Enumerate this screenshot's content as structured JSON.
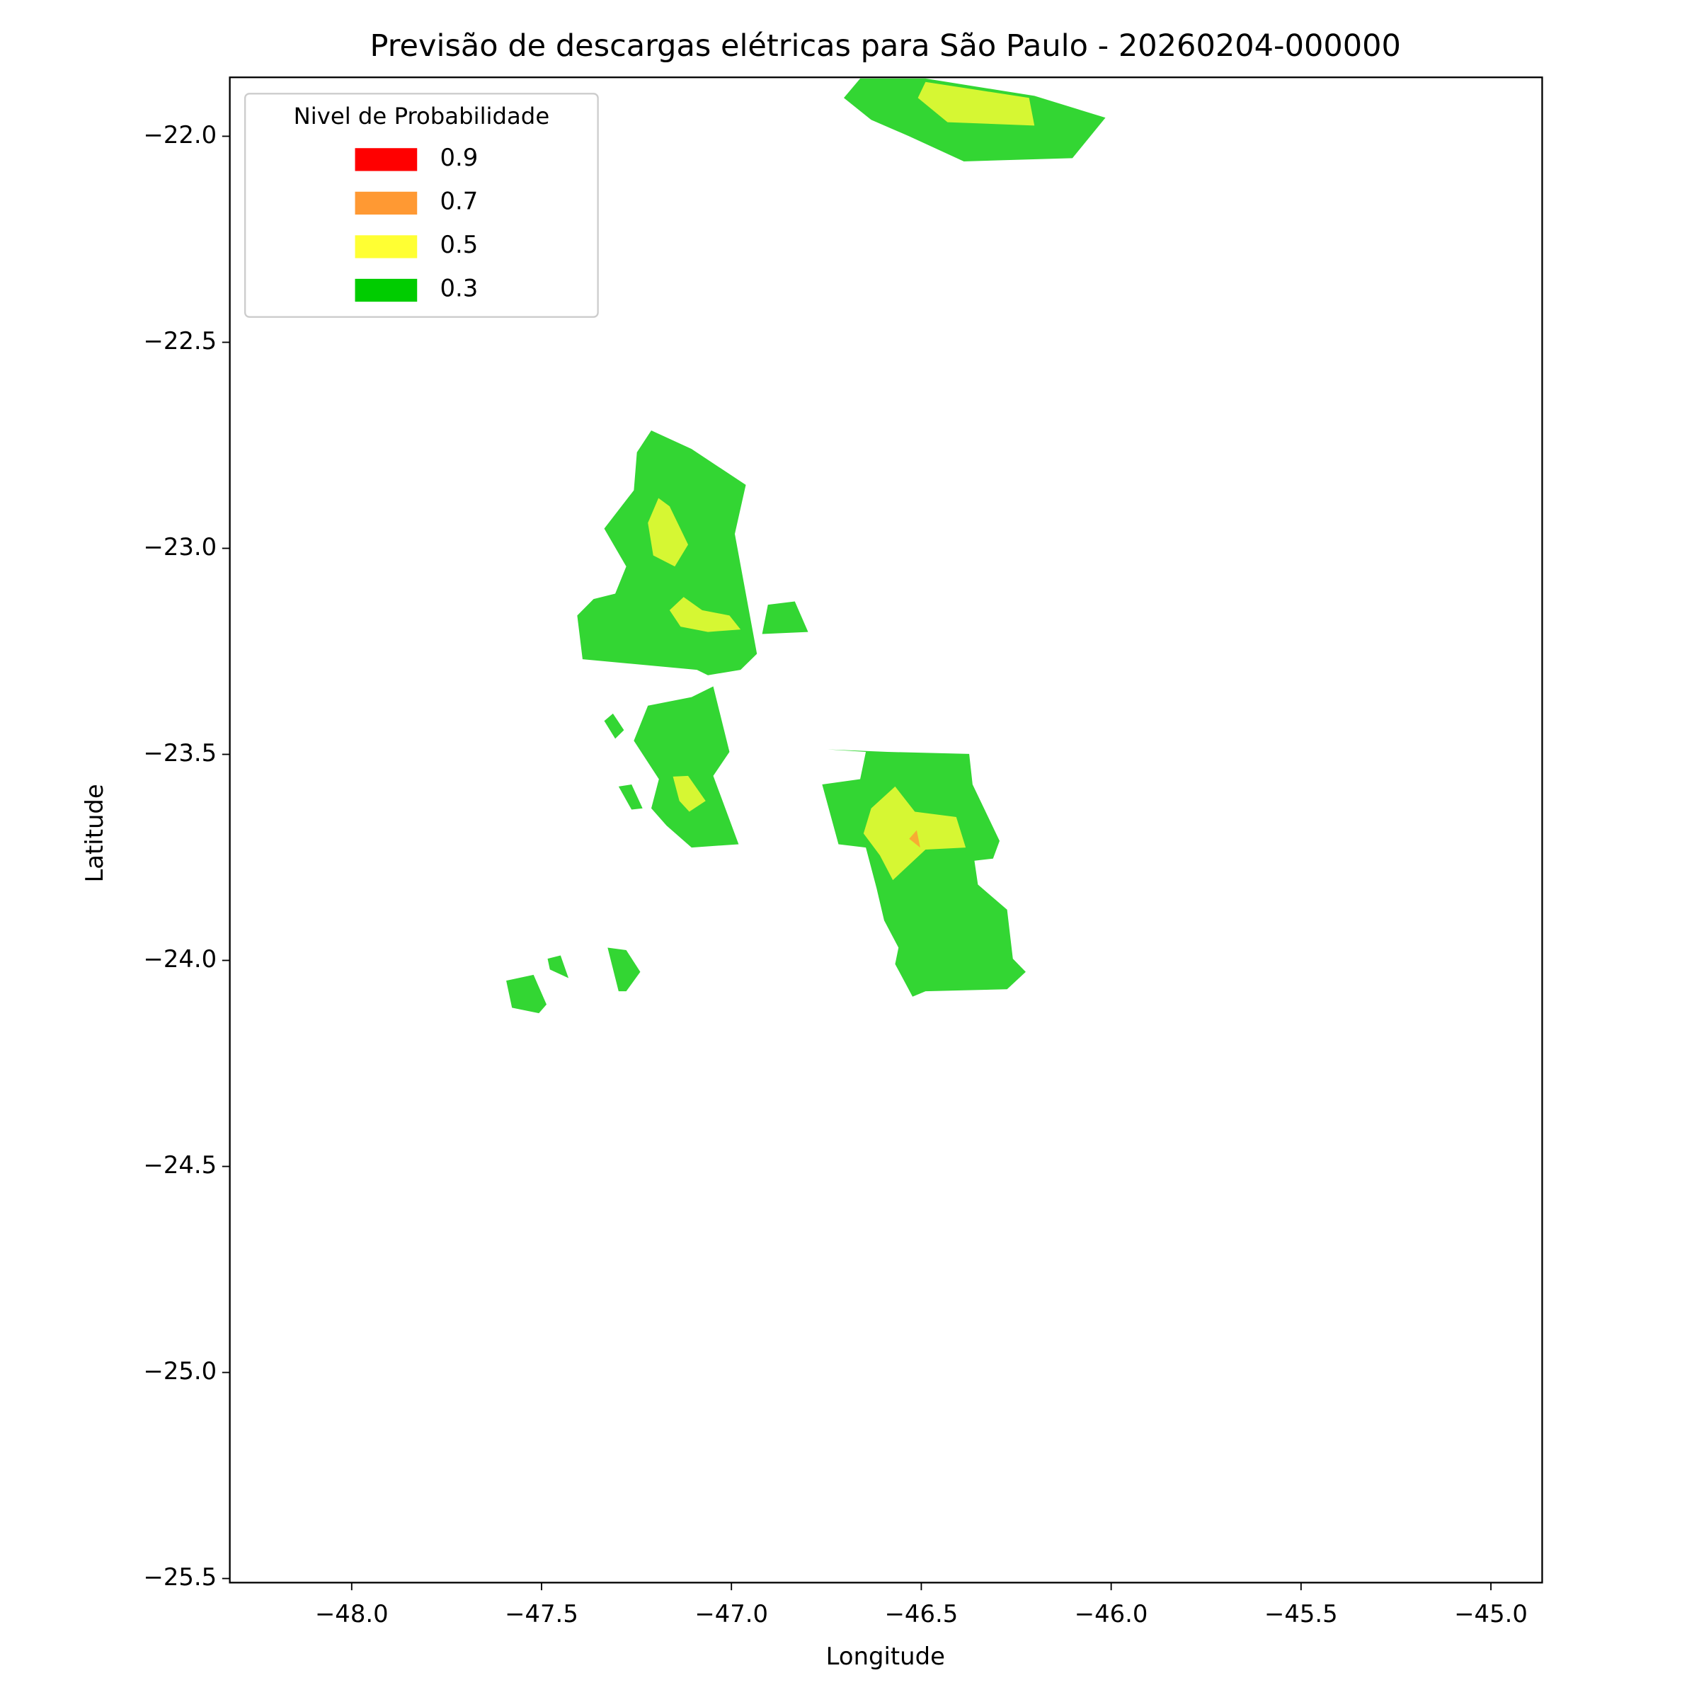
{
  "chart_data": {
    "type": "contour-map",
    "title": "Previsão de descargas elétricas para São Paulo - 20260204-000000",
    "x_label": "Longitude",
    "y_label": "Latitude",
    "xlim": [
      -48.321,
      -44.865
    ],
    "ylim": [
      -25.51,
      -21.857
    ],
    "xticks": [
      {
        "value": -48.0,
        "label": "−48.0"
      },
      {
        "value": -47.5,
        "label": "−47.5"
      },
      {
        "value": -47.0,
        "label": "−47.0"
      },
      {
        "value": -46.5,
        "label": "−46.5"
      },
      {
        "value": -46.0,
        "label": "−46.0"
      },
      {
        "value": -45.5,
        "label": "−45.5"
      },
      {
        "value": -45.0,
        "label": "−45.0"
      }
    ],
    "yticks": [
      {
        "value": -22.0,
        "label": "−22.0"
      },
      {
        "value": -22.5,
        "label": "−22.5"
      },
      {
        "value": -23.0,
        "label": "−23.0"
      },
      {
        "value": -23.5,
        "label": "−23.5"
      },
      {
        "value": -24.0,
        "label": "−24.0"
      },
      {
        "value": -24.5,
        "label": "−24.5"
      },
      {
        "value": -25.0,
        "label": "−25.0"
      },
      {
        "value": -25.5,
        "label": "−25.5"
      }
    ],
    "legend": {
      "title": "Nivel de Probabilidade",
      "position": "upper-left",
      "levels": [
        0.9,
        0.7,
        0.5,
        0.3
      ],
      "colors": [
        "#ff0000",
        "#ff9933",
        "#ffff33",
        "#00cc00"
      ]
    },
    "regions": [
      {
        "level": 0.3,
        "polygon": [
          [
            -46.704,
            -21.907
          ],
          [
            -46.661,
            -21.86
          ],
          [
            -46.489,
            -21.86
          ],
          [
            -46.202,
            -21.902
          ],
          [
            -46.015,
            -21.955
          ],
          [
            -46.102,
            -22.053
          ],
          [
            -46.388,
            -22.061
          ],
          [
            -46.532,
            -22.0
          ],
          [
            -46.632,
            -21.96
          ]
        ]
      },
      {
        "level": 0.5,
        "polygon": [
          [
            -46.509,
            -21.907
          ],
          [
            -46.489,
            -21.868
          ],
          [
            -46.216,
            -21.907
          ],
          [
            -46.202,
            -21.974
          ],
          [
            -46.431,
            -21.966
          ]
        ]
      },
      {
        "level": 0.3,
        "polygon": [
          [
            -47.249,
            -22.767
          ],
          [
            -47.211,
            -22.714
          ],
          [
            -47.105,
            -22.759
          ],
          [
            -46.962,
            -22.846
          ],
          [
            -46.991,
            -22.965
          ],
          [
            -46.933,
            -23.256
          ],
          [
            -46.976,
            -23.295
          ],
          [
            -47.062,
            -23.308
          ],
          [
            -47.091,
            -23.295
          ],
          [
            -47.392,
            -23.269
          ],
          [
            -47.406,
            -23.163
          ],
          [
            -47.363,
            -23.123
          ],
          [
            -47.306,
            -23.11
          ],
          [
            -47.277,
            -23.044
          ],
          [
            -47.335,
            -22.952
          ],
          [
            -47.257,
            -22.859
          ]
        ]
      },
      {
        "level": 0.3,
        "polygon": [
          [
            -46.904,
            -23.137
          ],
          [
            -46.833,
            -23.129
          ],
          [
            -46.798,
            -23.203
          ],
          [
            -46.919,
            -23.208
          ]
        ]
      },
      {
        "level": 0.5,
        "polygon": [
          [
            -47.22,
            -22.938
          ],
          [
            -47.192,
            -22.878
          ],
          [
            -47.163,
            -22.898
          ],
          [
            -47.114,
            -22.991
          ],
          [
            -47.149,
            -23.044
          ],
          [
            -47.206,
            -23.017
          ]
        ]
      },
      {
        "level": 0.5,
        "polygon": [
          [
            -47.163,
            -23.15
          ],
          [
            -47.126,
            -23.118
          ],
          [
            -47.077,
            -23.15
          ],
          [
            -47.005,
            -23.163
          ],
          [
            -46.976,
            -23.197
          ],
          [
            -47.062,
            -23.203
          ],
          [
            -47.134,
            -23.19
          ]
        ]
      },
      {
        "level": 0.3,
        "polygon": [
          [
            -47.22,
            -23.382
          ],
          [
            -47.105,
            -23.361
          ],
          [
            -47.048,
            -23.335
          ],
          [
            -47.005,
            -23.494
          ],
          [
            -47.048,
            -23.552
          ],
          [
            -46.981,
            -23.718
          ],
          [
            -47.105,
            -23.726
          ],
          [
            -47.171,
            -23.673
          ],
          [
            -47.211,
            -23.631
          ],
          [
            -47.191,
            -23.56
          ],
          [
            -47.257,
            -23.467
          ]
        ]
      },
      {
        "level": 0.5,
        "polygon": [
          [
            -47.154,
            -23.554
          ],
          [
            -47.114,
            -23.552
          ],
          [
            -47.068,
            -23.613
          ],
          [
            -47.111,
            -23.639
          ],
          [
            -47.137,
            -23.613
          ]
        ]
      },
      {
        "level": 0.3,
        "polygon": [
          [
            -46.589,
            -23.494
          ],
          [
            -46.374,
            -23.499
          ],
          [
            -46.365,
            -23.573
          ],
          [
            -46.294,
            -23.71
          ],
          [
            -46.311,
            -23.753
          ],
          [
            -46.36,
            -23.758
          ],
          [
            -46.351,
            -23.816
          ],
          [
            -46.274,
            -23.877
          ],
          [
            -46.259,
            -23.996
          ],
          [
            -46.225,
            -24.028
          ],
          [
            -46.274,
            -24.07
          ],
          [
            -46.489,
            -24.075
          ],
          [
            -46.523,
            -24.088
          ],
          [
            -46.569,
            -24.009
          ],
          [
            -46.56,
            -23.969
          ],
          [
            -46.598,
            -23.903
          ],
          [
            -46.618,
            -23.824
          ],
          [
            -46.646,
            -23.726
          ],
          [
            -46.718,
            -23.718
          ],
          [
            -46.761,
            -23.573
          ],
          [
            -46.661,
            -23.56
          ],
          [
            -46.646,
            -23.494
          ],
          [
            -46.747,
            -23.488
          ]
        ]
      },
      {
        "level": 0.5,
        "polygon": [
          [
            -46.632,
            -23.631
          ],
          [
            -46.569,
            -23.578
          ],
          [
            -46.517,
            -23.639
          ],
          [
            -46.408,
            -23.652
          ],
          [
            -46.383,
            -23.726
          ],
          [
            -46.489,
            -23.731
          ],
          [
            -46.575,
            -23.805
          ],
          [
            -46.609,
            -23.745
          ],
          [
            -46.652,
            -23.692
          ]
        ]
      },
      {
        "level": 0.7,
        "polygon": [
          [
            -46.532,
            -23.705
          ],
          [
            -46.512,
            -23.684
          ],
          [
            -46.503,
            -23.726
          ]
        ]
      },
      {
        "level": 0.3,
        "polygon": [
          [
            -47.593,
            -24.049
          ],
          [
            -47.521,
            -24.035
          ],
          [
            -47.487,
            -24.107
          ],
          [
            -47.507,
            -24.128
          ],
          [
            -47.578,
            -24.115
          ]
        ]
      },
      {
        "level": 0.3,
        "polygon": [
          [
            -47.326,
            -23.969
          ],
          [
            -47.277,
            -23.975
          ],
          [
            -47.24,
            -24.028
          ],
          [
            -47.277,
            -24.075
          ],
          [
            -47.297,
            -24.075
          ]
        ]
      },
      {
        "level": 0.3,
        "polygon": [
          [
            -47.484,
            -23.996
          ],
          [
            -47.45,
            -23.988
          ],
          [
            -47.429,
            -24.043
          ],
          [
            -47.478,
            -24.022
          ]
        ]
      },
      {
        "level": 0.3,
        "polygon": [
          [
            -47.335,
            -23.419
          ],
          [
            -47.312,
            -23.401
          ],
          [
            -47.283,
            -23.441
          ],
          [
            -47.306,
            -23.462
          ]
        ]
      },
      {
        "level": 0.3,
        "polygon": [
          [
            -47.297,
            -23.578
          ],
          [
            -47.263,
            -23.573
          ],
          [
            -47.234,
            -23.631
          ],
          [
            -47.263,
            -23.634
          ]
        ]
      }
    ]
  }
}
